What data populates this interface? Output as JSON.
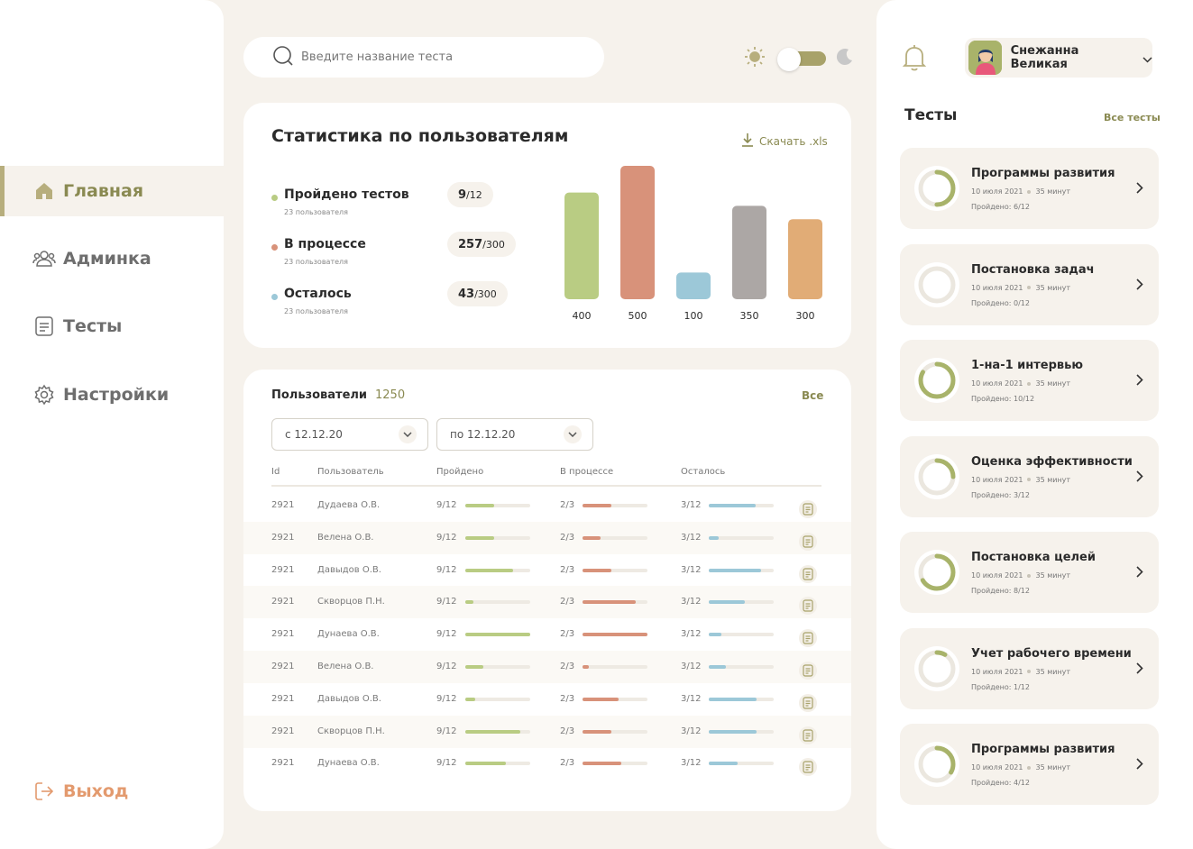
{
  "nav": {
    "items": [
      {
        "label": "Главная",
        "icon": "home-icon"
      },
      {
        "label": "Админка",
        "icon": "users-icon"
      },
      {
        "label": "Тесты",
        "icon": "document-icon"
      },
      {
        "label": "Настройки",
        "icon": "gear-icon"
      }
    ],
    "logout": "Выход"
  },
  "search": {
    "placeholder": "Введите название теста"
  },
  "stats": {
    "title": "Статистика по пользователям",
    "download": "Скачать .xls",
    "rows": [
      {
        "label": "Пройдено тестов",
        "sub": "23 пользователя",
        "value": "9",
        "total": "/12",
        "color": "#b9cc83"
      },
      {
        "label": "В процессе",
        "sub": "23 пользователя",
        "value": "257",
        "total": "/300",
        "color": "#d8927a"
      },
      {
        "label": "Осталось",
        "sub": "23 пользователя",
        "value": "43",
        "total": "/300",
        "color": "#9cc8d8"
      }
    ]
  },
  "chart_data": {
    "type": "bar",
    "categories": [
      "400",
      "500",
      "100",
      "350",
      "300"
    ],
    "values": [
      400,
      500,
      100,
      350,
      300
    ],
    "colors": [
      "#b9cc83",
      "#d8927a",
      "#9cc8d8",
      "#aca7a5",
      "#e1ac76"
    ],
    "title": "",
    "xlabel": "",
    "ylabel": "",
    "ylim": [
      0,
      500
    ]
  },
  "users": {
    "title": "Пользователи",
    "count": "1250",
    "all": "Все",
    "date_from": "с 12.12.20",
    "date_to": "по 12.12.20",
    "columns": [
      "Id",
      "Пользователь",
      "Пройдено",
      "В процессе",
      "Осталось"
    ],
    "rows": [
      {
        "id": "2921",
        "name": "Дудаева О.В.",
        "passed": "9/12",
        "passed_pct": 0.45,
        "progress": "2/3",
        "progress_pct": 0.45,
        "left": "3/12",
        "left_pct": 0.72
      },
      {
        "id": "2921",
        "name": "Велена О.В.",
        "passed": "9/12",
        "passed_pct": 0.45,
        "progress": "2/3",
        "progress_pct": 0.28,
        "left": "3/12",
        "left_pct": 0.15
      },
      {
        "id": "2921",
        "name": "Давыдов О.В.",
        "passed": "9/12",
        "passed_pct": 0.73,
        "progress": "2/3",
        "progress_pct": 0.45,
        "left": "3/12",
        "left_pct": 0.8
      },
      {
        "id": "2921",
        "name": "Скворцов П.Н.",
        "passed": "9/12",
        "passed_pct": 0.12,
        "progress": "2/3",
        "progress_pct": 0.82,
        "left": "3/12",
        "left_pct": 0.56
      },
      {
        "id": "2921",
        "name": "Дунаева О.В.",
        "passed": "9/12",
        "passed_pct": 1.0,
        "progress": "2/3",
        "progress_pct": 1.0,
        "left": "3/12",
        "left_pct": 0.2
      },
      {
        "id": "2921",
        "name": "Велена О.В.",
        "passed": "9/12",
        "passed_pct": 0.28,
        "progress": "2/3",
        "progress_pct": 0.1,
        "left": "3/12",
        "left_pct": 0.26
      },
      {
        "id": "2921",
        "name": "Давыдов О.В.",
        "passed": "9/12",
        "passed_pct": 0.15,
        "progress": "2/3",
        "progress_pct": 0.56,
        "left": "3/12",
        "left_pct": 0.74
      },
      {
        "id": "2921",
        "name": "Скворцов П.Н.",
        "passed": "9/12",
        "passed_pct": 0.85,
        "progress": "2/3",
        "progress_pct": 0.45,
        "left": "3/12",
        "left_pct": 0.74
      },
      {
        "id": "2921",
        "name": "Дунаева О.В.",
        "passed": "9/12",
        "passed_pct": 0.62,
        "progress": "2/3",
        "progress_pct": 0.6,
        "left": "3/12",
        "left_pct": 0.45
      }
    ]
  },
  "profile": {
    "name": "Снежанна Великая"
  },
  "tests": {
    "title": "Тесты",
    "all": "Все тесты",
    "passed_label": "Пройдено:",
    "items": [
      {
        "title": "Программы развития",
        "date": "10 июля 2021",
        "duration": "35 минут",
        "passed": "6/12",
        "fraction": 0.5
      },
      {
        "title": "Постановка задач",
        "date": "10 июля 2021",
        "duration": "35 минут",
        "passed": "0/12",
        "fraction": 0
      },
      {
        "title": "1-на-1 интервью",
        "date": "10 июля 2021",
        "duration": "35 минут",
        "passed": "10/12",
        "fraction": 0.833
      },
      {
        "title": "Оценка эффективности",
        "date": "10 июля 2021",
        "duration": "35 минут",
        "passed": "3/12",
        "fraction": 0.25
      },
      {
        "title": "Постановка целей",
        "date": "10 июля 2021",
        "duration": "35 минут",
        "passed": "8/12",
        "fraction": 0.667
      },
      {
        "title": "Учет рабочего времени",
        "date": "10 июля 2021",
        "duration": "35 минут",
        "passed": "1/12",
        "fraction": 0.083
      },
      {
        "title": "Программы развития",
        "date": "10 июля 2021",
        "duration": "35 минут",
        "passed": "4/12",
        "fraction": 0.333
      }
    ]
  },
  "colors": {
    "accent": "#8a8a52",
    "toggle": "#a8a26a",
    "logout": "#e39a6e",
    "ring": "#a8b36a",
    "ring_track": "#ebe7df"
  }
}
